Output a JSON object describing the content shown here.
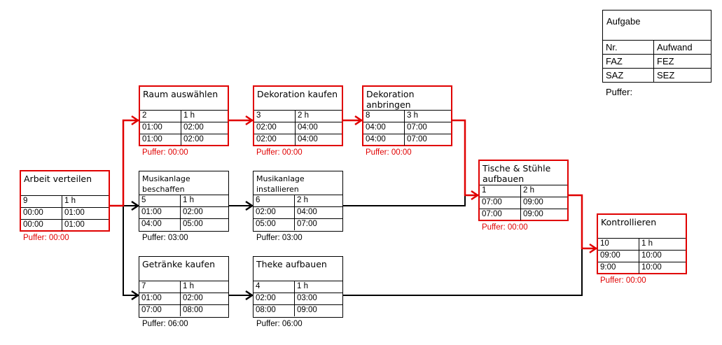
{
  "colors": {
    "critical": "#e00000",
    "normal": "#000000"
  },
  "legend": {
    "title": "Aufgabe",
    "nr": "Nr.",
    "aufwand": "Aufwand",
    "faz": "FAZ",
    "fez": "FEZ",
    "saz": "SAZ",
    "sez": "SEZ",
    "puffer": "Puffer:"
  },
  "nodes": [
    {
      "title": "Arbeit verteilen",
      "nr": "9",
      "dauer": "1 h",
      "faz": "00:00",
      "fez": "01:00",
      "saz": "00:00",
      "sez": "01:00",
      "puffer": "Puffer: 00:00",
      "critical": true
    },
    {
      "title": "Raum auswählen",
      "nr": "2",
      "dauer": "1 h",
      "faz": "01:00",
      "fez": "02:00",
      "saz": "01:00",
      "sez": "02:00",
      "puffer": "Puffer: 00:00",
      "critical": true
    },
    {
      "title": "Dekoration kaufen",
      "nr": "3",
      "dauer": "2 h",
      "faz": "02:00",
      "fez": "04:00",
      "saz": "02:00",
      "sez": "04:00",
      "puffer": "Puffer: 00:00",
      "critical": true
    },
    {
      "title": "Dekoration anbringen",
      "nr": "8",
      "dauer": "3 h",
      "faz": "04:00",
      "fez": "07:00",
      "saz": "04:00",
      "sez": "07:00",
      "puffer": "Puffer: 00:00",
      "critical": true
    },
    {
      "title": "Musikanlage beschaffen",
      "nr": "5",
      "dauer": "1 h",
      "faz": "01:00",
      "fez": "02:00",
      "saz": "04:00",
      "sez": "05:00",
      "puffer": "Puffer: 03:00",
      "critical": false
    },
    {
      "title": "Musikanlage installieren",
      "nr": "6",
      "dauer": "2 h",
      "faz": "02:00",
      "fez": "04:00",
      "saz": "05:00",
      "sez": "07:00",
      "puffer": "Puffer: 03:00",
      "critical": false
    },
    {
      "title": "Getränke kaufen",
      "nr": "7",
      "dauer": "1 h",
      "faz": "01:00",
      "fez": "02:00",
      "saz": "07:00",
      "sez": "08:00",
      "puffer": "Puffer: 06:00",
      "critical": false
    },
    {
      "title": "Theke aufbauen",
      "nr": "4",
      "dauer": "1 h",
      "faz": "02:00",
      "fez": "03:00",
      "saz": "08:00",
      "sez": "09:00",
      "puffer": "Puffer: 06:00",
      "critical": false
    },
    {
      "title": "Tische & Stühle aufbauen",
      "nr": "1",
      "dauer": "2 h",
      "faz": "07:00",
      "fez": "09:00",
      "saz": "07:00",
      "sez": "09:00",
      "puffer": "Puffer: 00:00",
      "critical": true
    },
    {
      "title": "Kontrollieren",
      "nr": "10",
      "dauer": "1 h",
      "faz": "09:00",
      "fez": "10:00",
      "saz": "9:00",
      "sez": "10:00",
      "puffer": "Puffer: 00:00",
      "critical": true
    }
  ],
  "edges": [
    {
      "from": "Arbeit verteilen",
      "to": "Raum auswählen",
      "critical": true
    },
    {
      "from": "Arbeit verteilen",
      "to": "Musikanlage beschaffen",
      "critical": false
    },
    {
      "from": "Arbeit verteilen",
      "to": "Getränke kaufen",
      "critical": false
    },
    {
      "from": "Raum auswählen",
      "to": "Dekoration kaufen",
      "critical": true
    },
    {
      "from": "Dekoration kaufen",
      "to": "Dekoration anbringen",
      "critical": true
    },
    {
      "from": "Dekoration anbringen",
      "to": "Tische & Stühle aufbauen",
      "critical": true
    },
    {
      "from": "Musikanlage beschaffen",
      "to": "Musikanlage installieren",
      "critical": false
    },
    {
      "from": "Musikanlage installieren",
      "to": "Tische & Stühle aufbauen",
      "critical": false
    },
    {
      "from": "Getränke kaufen",
      "to": "Theke aufbauen",
      "critical": false
    },
    {
      "from": "Theke aufbauen",
      "to": "Kontrollieren",
      "critical": false
    },
    {
      "from": "Tische & Stühle aufbauen",
      "to": "Kontrollieren",
      "critical": true
    }
  ]
}
